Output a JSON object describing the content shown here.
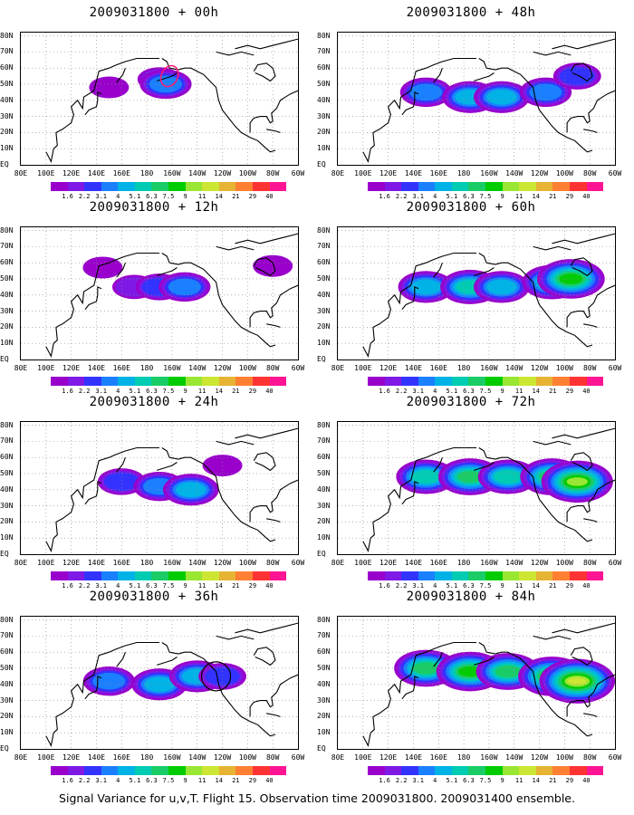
{
  "caption": "Signal Variance for u,v,T. Flight 15. Observation time 2009031800. 2009031400 ensemble.",
  "y_ticks": [
    "80N",
    "70N",
    "60N",
    "50N",
    "40N",
    "30N",
    "20N",
    "10N",
    "EQ"
  ],
  "x_ticks": [
    "80E",
    "100E",
    "120E",
    "140E",
    "160E",
    "180",
    "160W",
    "140W",
    "120W",
    "100W",
    "80W",
    "60W"
  ],
  "colorbar": {
    "levels": [
      "1.6",
      "2.2",
      "3.1",
      "4",
      "5.1",
      "6.3",
      "7.5",
      "9",
      "11",
      "14",
      "21",
      "29",
      "40"
    ],
    "colors": [
      "#9900cc",
      "#7f19e6",
      "#3333ff",
      "#1a80ff",
      "#00b3e6",
      "#00ccb3",
      "#1acc66",
      "#00cc00",
      "#99e633",
      "#cce633",
      "#e6b333",
      "#ff8033",
      "#ff3333",
      "#ff1493"
    ]
  },
  "chart_data": [
    {
      "type": "heatmap",
      "title": "2009031800 + 00h",
      "lead_hours": 0,
      "variable": "Signal Variance",
      "xlim": [
        "80E",
        "60W"
      ],
      "ylim": [
        "EQ",
        "80N"
      ],
      "max_level": "5.1",
      "marker": "red contour near 160W 55N",
      "blobs": [
        {
          "lon": -170,
          "lat": 53,
          "level": "2.2"
        },
        {
          "lon": -165,
          "lat": 50,
          "level": "4"
        },
        {
          "lon": 150,
          "lat": 48,
          "level": "1.6"
        }
      ]
    },
    {
      "type": "heatmap",
      "title": "2009031800 + 12h",
      "lead_hours": 12,
      "variable": "Signal Variance",
      "xlim": [
        "80E",
        "60W"
      ],
      "ylim": [
        "EQ",
        "80N"
      ],
      "max_level": "5.1",
      "blobs": [
        {
          "lon": 170,
          "lat": 45,
          "level": "2.2"
        },
        {
          "lon": -170,
          "lat": 45,
          "level": "3.1"
        },
        {
          "lon": -150,
          "lat": 45,
          "level": "4"
        },
        {
          "lon": 145,
          "lat": 57,
          "level": "1.6"
        },
        {
          "lon": -80,
          "lat": 58,
          "level": "1.6"
        }
      ]
    },
    {
      "type": "heatmap",
      "title": "2009031800 + 24h",
      "lead_hours": 24,
      "variable": "Signal Variance",
      "xlim": [
        "80E",
        "60W"
      ],
      "ylim": [
        "EQ",
        "80N"
      ],
      "max_level": "6.3",
      "blobs": [
        {
          "lon": 160,
          "lat": 45,
          "level": "3.1"
        },
        {
          "lon": -170,
          "lat": 42,
          "level": "4"
        },
        {
          "lon": -145,
          "lat": 40,
          "level": "5.1"
        },
        {
          "lon": -120,
          "lat": 55,
          "level": "1.6"
        }
      ]
    },
    {
      "type": "heatmap",
      "title": "2009031800 + 36h",
      "lead_hours": 36,
      "variable": "Signal Variance",
      "xlim": [
        "80E",
        "60W"
      ],
      "ylim": [
        "EQ",
        "80N"
      ],
      "max_level": "6.3",
      "marker": "black circle near 125W 45N",
      "blobs": [
        {
          "lon": 150,
          "lat": 42,
          "level": "4"
        },
        {
          "lon": -170,
          "lat": 40,
          "level": "5.1"
        },
        {
          "lon": -140,
          "lat": 45,
          "level": "5.1"
        },
        {
          "lon": -120,
          "lat": 45,
          "level": "3.1"
        }
      ]
    },
    {
      "type": "heatmap",
      "title": "2009031800 + 48h",
      "lead_hours": 48,
      "variable": "Signal Variance",
      "xlim": [
        "80E",
        "60W"
      ],
      "ylim": [
        "EQ",
        "80N"
      ],
      "max_level": "6.3",
      "blobs": [
        {
          "lon": 150,
          "lat": 45,
          "level": "4"
        },
        {
          "lon": -175,
          "lat": 42,
          "level": "5.1"
        },
        {
          "lon": -150,
          "lat": 42,
          "level": "5.1"
        },
        {
          "lon": -115,
          "lat": 45,
          "level": "4"
        },
        {
          "lon": -90,
          "lat": 55,
          "level": "3.1"
        }
      ]
    },
    {
      "type": "heatmap",
      "title": "2009031800 + 60h",
      "lead_hours": 60,
      "variable": "Signal Variance",
      "xlim": [
        "80E",
        "60W"
      ],
      "ylim": [
        "EQ",
        "80N"
      ],
      "max_level": "9",
      "blobs": [
        {
          "lon": 150,
          "lat": 45,
          "level": "5.1"
        },
        {
          "lon": -175,
          "lat": 45,
          "level": "6.3"
        },
        {
          "lon": -150,
          "lat": 45,
          "level": "5.1"
        },
        {
          "lon": -110,
          "lat": 48,
          "level": "6.3"
        },
        {
          "lon": -95,
          "lat": 50,
          "level": "9"
        }
      ]
    },
    {
      "type": "heatmap",
      "title": "2009031800 + 72h",
      "lead_hours": 72,
      "variable": "Signal Variance",
      "xlim": [
        "80E",
        "60W"
      ],
      "ylim": [
        "EQ",
        "80N"
      ],
      "max_level": "11",
      "blobs": [
        {
          "lon": 150,
          "lat": 48,
          "level": "6.3"
        },
        {
          "lon": -175,
          "lat": 48,
          "level": "7.5"
        },
        {
          "lon": -145,
          "lat": 48,
          "level": "6.3"
        },
        {
          "lon": -110,
          "lat": 48,
          "level": "7.5"
        },
        {
          "lon": -90,
          "lat": 45,
          "level": "11"
        }
      ]
    },
    {
      "type": "heatmap",
      "title": "2009031800 + 84h",
      "lead_hours": 84,
      "variable": "Signal Variance",
      "xlim": [
        "80E",
        "60W"
      ],
      "ylim": [
        "EQ",
        "80N"
      ],
      "max_level": "14",
      "blobs": [
        {
          "lon": 150,
          "lat": 50,
          "level": "7.5"
        },
        {
          "lon": -175,
          "lat": 48,
          "level": "9"
        },
        {
          "lon": -145,
          "lat": 48,
          "level": "7.5"
        },
        {
          "lon": -110,
          "lat": 45,
          "level": "9"
        },
        {
          "lon": -90,
          "lat": 42,
          "level": "14"
        }
      ]
    }
  ]
}
